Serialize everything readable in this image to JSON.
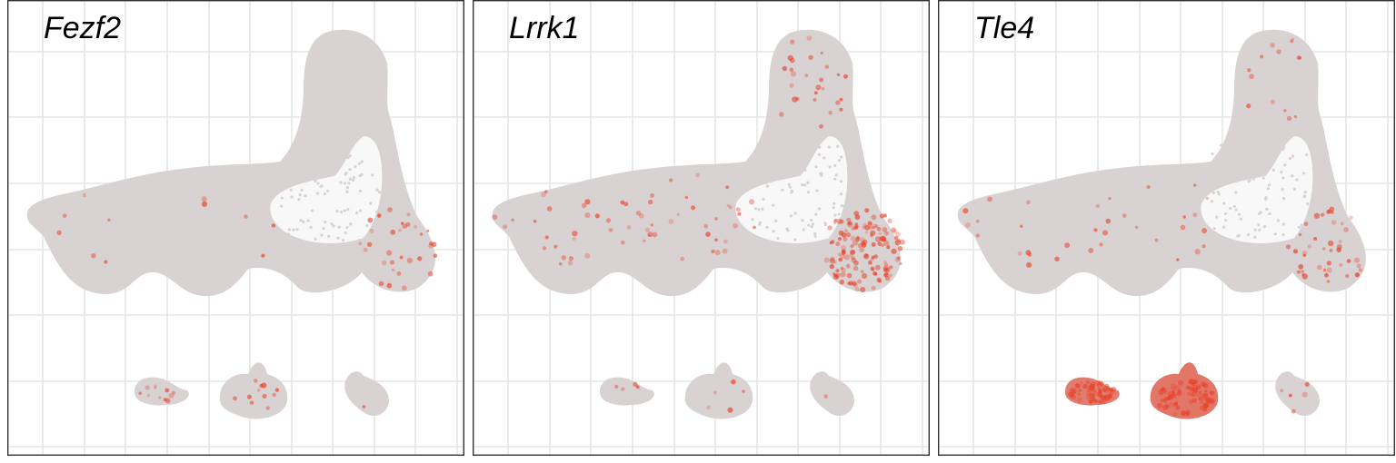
{
  "chart_data": {
    "type": "scatter",
    "title": "",
    "xlabel": "",
    "ylabel": "",
    "grid": true,
    "legend": "none",
    "description_colors": {
      "background_cell": "#d8d2d2",
      "expression_high": "#e8432a"
    },
    "panels": [
      {
        "gene": "Fezf2",
        "expression": {
          "main_cluster_left": 0.05,
          "main_cluster_middle": 0.05,
          "main_cluster_top": 0.0,
          "main_cluster_right": 0.15,
          "small_cluster_1": 0.15,
          "small_cluster_2": 0.12,
          "small_cluster_3": 0.02
        }
      },
      {
        "gene": "Lrrk1",
        "expression": {
          "main_cluster_left": 0.25,
          "main_cluster_middle": 0.3,
          "main_cluster_top": 0.3,
          "main_cluster_right": 0.7,
          "small_cluster_1": 0.05,
          "small_cluster_2": 0.05,
          "small_cluster_3": 0.03
        }
      },
      {
        "gene": "Tle4",
        "expression": {
          "main_cluster_left": 0.15,
          "main_cluster_middle": 0.15,
          "main_cluster_top": 0.15,
          "main_cluster_right": 0.2,
          "small_cluster_1": 0.85,
          "small_cluster_2": 0.9,
          "small_cluster_3": 0.12
        }
      }
    ]
  }
}
